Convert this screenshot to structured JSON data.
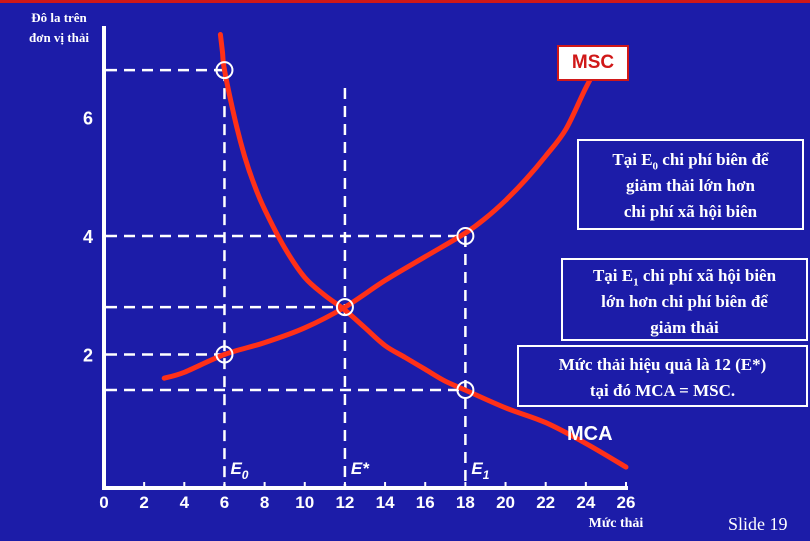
{
  "slide": {
    "number_label": "Slide 19"
  },
  "colors": {
    "background": "#1c1ca8",
    "curve": "#ff3018",
    "axis": "#ffffff",
    "accent": "#d01818"
  },
  "chart_data": {
    "type": "line",
    "ylabel": "Đô la trên\nđơn vị thải",
    "xlabel": "Mức thải",
    "xlim": [
      0,
      26
    ],
    "ylim": [
      0,
      7.5
    ],
    "xticks": [
      0,
      2,
      4,
      6,
      8,
      10,
      12,
      14,
      16,
      18,
      20,
      22,
      24,
      26
    ],
    "yticks": [
      2,
      4,
      6
    ],
    "series": [
      {
        "name": "MSC",
        "x": [
          3,
          4,
          6,
          8,
          10,
          12,
          14,
          16,
          18,
          19,
          20,
          21,
          22,
          23,
          24,
          24.8
        ],
        "y": [
          1.6,
          1.7,
          2.0,
          2.2,
          2.45,
          2.8,
          3.25,
          3.65,
          4.05,
          4.3,
          4.6,
          4.95,
          5.35,
          5.8,
          6.5,
          7.0
        ]
      },
      {
        "name": "MCA",
        "x": [
          5.8,
          5.9,
          6,
          6.5,
          7,
          7.5,
          8,
          9,
          10,
          11,
          12,
          13,
          14,
          15,
          16,
          17,
          18,
          20,
          22,
          24,
          26
        ],
        "y": [
          7.4,
          7.1,
          6.8,
          6.0,
          5.35,
          4.85,
          4.45,
          3.8,
          3.3,
          3.0,
          2.75,
          2.45,
          2.15,
          1.95,
          1.75,
          1.55,
          1.4,
          1.1,
          0.85,
          0.5,
          0.1
        ]
      }
    ],
    "guides": [
      {
        "x": 6,
        "y": 6.8
      },
      {
        "x": 6,
        "y": 2.0
      },
      {
        "x": 18,
        "y": 4.0
      },
      {
        "x": 12,
        "y": 2.8
      },
      {
        "x": 18,
        "y": 1.4
      }
    ],
    "vertical_dashes": [
      6,
      12,
      18
    ],
    "markers": [
      {
        "x": 6,
        "y": 6.8
      },
      {
        "x": 6,
        "y": 2.0
      },
      {
        "x": 12,
        "y": 2.8
      },
      {
        "x": 18,
        "y": 4.0
      },
      {
        "x": 18,
        "y": 1.4
      }
    ],
    "point_labels": [
      {
        "x": 6,
        "base": "E",
        "sub": "0"
      },
      {
        "x": 12,
        "base": "E*",
        "sub": ""
      },
      {
        "x": 18,
        "base": "E",
        "sub": "1"
      }
    ]
  },
  "labels": {
    "msc": "MSC",
    "mca": "MCA"
  },
  "notes": {
    "note1": {
      "l1_pre": "Tại E",
      "l1_sub": "0",
      "l1_post": " chi phí biên để",
      "l2": "giảm thải lớn hơn",
      "l3": "chi phí xã hội biên"
    },
    "note2": {
      "l1_pre": "Tại E",
      "l1_sub": "1",
      "l1_post": " chi phí xã hội biên",
      "l2": "lớn hơn chi phí biên để",
      "l3": "giảm thải"
    },
    "note3": {
      "l1": "Mức thải hiệu quả là 12 (E*)",
      "l2": "tại đó MCA = MSC."
    }
  }
}
